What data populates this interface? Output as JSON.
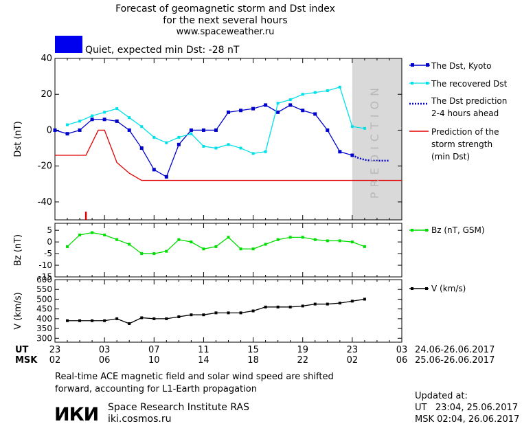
{
  "header": {
    "title_lines": [
      "Forecast of geomagnetic storm and Dst index",
      "for the next several hours",
      "www.spaceweather.ru"
    ],
    "status_text": "Quiet, expected min Dst: -28 nT",
    "status_color": "#0000ee"
  },
  "legend": {
    "dst_kyoto": "The Dst, Kyoto",
    "recovered": "The recovered Dst",
    "prediction": [
      "The Dst prediction",
      "2-4 hours ahead"
    ],
    "storm": [
      "Prediction of the",
      "storm strength",
      "(min Dst)"
    ],
    "bz": "Bz (nT, GSM)",
    "v": "V (km/s)"
  },
  "prediction_label": "PREDICTION",
  "time_axis": {
    "ut_label": "UT",
    "msk_label": "MSK",
    "ut_ticks": [
      "23",
      "03",
      "07",
      "11",
      "15",
      "19",
      "23",
      "03"
    ],
    "msk_ticks": [
      "02",
      "06",
      "10",
      "14",
      "18",
      "22",
      "02",
      "06"
    ],
    "ut_range": "24.06-26.06.2017",
    "msk_range": "25.06-26.06.2017"
  },
  "footer": {
    "note_lines": [
      "Real-time ACE magnetic field and solar wind speed are shifted",
      "forward, accounting for L1-Earth propagation"
    ],
    "institute": "Space Research Institute RAS",
    "site": "iki.cosmos.ru",
    "logo_text": "ИКИ",
    "updated_label": "Updated at:",
    "updated_ut": "UT   23:04, 25.06.2017",
    "updated_msk": "MSK 02:04, 26.06.2017"
  },
  "chart_data": [
    {
      "type": "line",
      "ylabel": "Dst (nT)",
      "x_unit": "hours after 23 UT, 24.06.2017",
      "xlim": [
        0,
        28
      ],
      "ylim": [
        -50,
        40
      ],
      "yticks": [
        -40,
        -20,
        0,
        20,
        40
      ],
      "prediction_region": [
        24,
        28
      ],
      "series": [
        {
          "name": "The Dst, Kyoto",
          "color": "#0000cc",
          "x": [
            0,
            1,
            2,
            3,
            4,
            5,
            6,
            7,
            8,
            9,
            10,
            11,
            12,
            13,
            14,
            15,
            16,
            17,
            18,
            19,
            20,
            21,
            22,
            23,
            24
          ],
          "y": [
            0,
            -2,
            0,
            6,
            6,
            5,
            0,
            -10,
            -22,
            -26,
            -8,
            0,
            0,
            0,
            10,
            11,
            12,
            14,
            10,
            14,
            11,
            9,
            0,
            -12,
            -14
          ]
        },
        {
          "name": "The recovered Dst",
          "color": "#00e0e8",
          "x": [
            1,
            2,
            3,
            4,
            5,
            6,
            7,
            8,
            9,
            10,
            11,
            12,
            13,
            14,
            15,
            16,
            17,
            18,
            19,
            20,
            21,
            22,
            23,
            24,
            25
          ],
          "y": [
            3,
            5,
            8,
            10,
            12,
            7,
            2,
            -4,
            -7,
            -4,
            -2,
            -9,
            -10,
            -8,
            -10,
            -13,
            -12,
            15,
            17,
            20,
            21,
            22,
            24,
            2,
            1
          ]
        },
        {
          "name": "The Dst prediction 2-4 hours ahead",
          "color": "#0000cc",
          "dashed": true,
          "x": [
            24,
            24.5,
            25,
            25.5,
            26,
            26.5,
            27
          ],
          "y": [
            -14,
            -15.5,
            -16.5,
            -17,
            -17,
            -17,
            -17
          ]
        },
        {
          "name": "Prediction of the storm strength (min Dst)",
          "color": "#e00000",
          "x": [
            0,
            1,
            2,
            2.5,
            3,
            3.5,
            4,
            5,
            6,
            7,
            8,
            28
          ],
          "y": [
            -14,
            -14,
            -14,
            -14,
            -7,
            0,
            0,
            -18,
            -24,
            -28,
            -28,
            -28
          ]
        }
      ],
      "marker_x": 2.5
    },
    {
      "type": "line",
      "ylabel": "Bz (nT)",
      "ylim": [
        -15,
        8
      ],
      "yticks": [
        -15,
        -10,
        -5,
        0,
        5
      ],
      "series": [
        {
          "name": "Bz (nT, GSM)",
          "color": "#00dd00",
          "x": [
            1,
            2,
            3,
            4,
            5,
            6,
            7,
            8,
            9,
            10,
            11,
            12,
            13,
            14,
            15,
            16,
            17,
            18,
            19,
            20,
            21,
            22,
            23,
            24,
            25
          ],
          "y": [
            -2,
            3,
            4,
            3,
            1,
            -1,
            -5,
            -5,
            -4,
            1,
            0,
            -3,
            -2,
            2,
            -3,
            -3,
            -1,
            1,
            2,
            2,
            1,
            0.5,
            0.5,
            0,
            -2
          ]
        }
      ]
    },
    {
      "type": "line",
      "ylabel": "V (km/s)",
      "ylim": [
        280,
        600
      ],
      "yticks": [
        300,
        350,
        400,
        450,
        500,
        550,
        600
      ],
      "series": [
        {
          "name": "V (km/s)",
          "color": "#000000",
          "x": [
            1,
            2,
            3,
            4,
            5,
            6,
            7,
            8,
            9,
            10,
            11,
            12,
            13,
            14,
            15,
            16,
            17,
            18,
            19,
            20,
            21,
            22,
            23,
            24,
            25
          ],
          "y": [
            390,
            390,
            390,
            390,
            400,
            375,
            405,
            400,
            400,
            410,
            420,
            420,
            430,
            430,
            430,
            440,
            460,
            460,
            460,
            465,
            475,
            475,
            480,
            490,
            500
          ]
        }
      ]
    }
  ]
}
